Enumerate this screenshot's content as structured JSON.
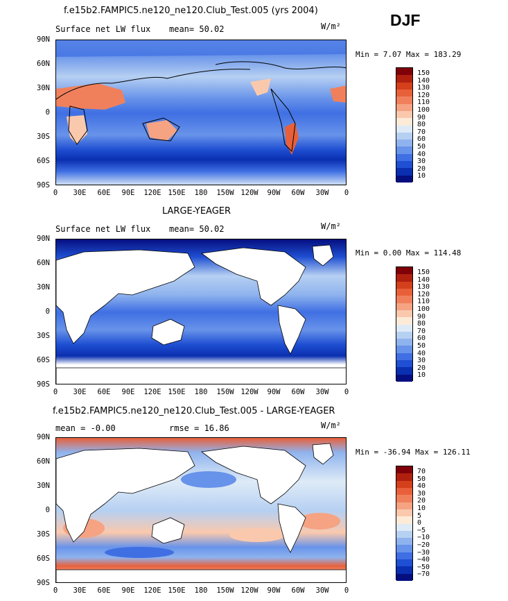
{
  "season": "DJF",
  "units": "W/m²",
  "lon_ticks": [
    "0",
    "30E",
    "60E",
    "90E",
    "120E",
    "150E",
    "180",
    "150W",
    "120W",
    "90W",
    "60W",
    "30W",
    "0"
  ],
  "lat_ticks": [
    "90N",
    "60N",
    "30N",
    "0",
    "30S",
    "60S",
    "90S"
  ],
  "panels": [
    {
      "title": "f.e15b2.FAMPIC5.ne120_ne120.Club_Test.005 (yrs 2004)",
      "left_label": "Surface net LW flux",
      "center_label": "mean=  50.02",
      "minmax": "Min =   7.07 Max = 183.29",
      "colorbar_labels": [
        "150",
        "140",
        "130",
        "120",
        "110",
        "100",
        "90",
        "80",
        "70",
        "60",
        "50",
        "40",
        "30",
        "20",
        "10"
      ]
    },
    {
      "title": "LARGE-YEAGER",
      "left_label": "Surface net LW flux",
      "center_label": "mean=  50.02",
      "minmax": "Min =   0.00 Max = 114.48",
      "colorbar_labels": [
        "150",
        "140",
        "130",
        "120",
        "110",
        "100",
        "90",
        "80",
        "70",
        "60",
        "50",
        "40",
        "30",
        "20",
        "10"
      ]
    },
    {
      "title": "f.e15b2.FAMPIC5.ne120_ne120.Club_Test.005 - LARGE-YEAGER",
      "left_label": "mean =  -0.00",
      "center_label": "rmse =  16.86",
      "minmax": "Min = -36.94 Max = 126.11",
      "colorbar_labels": [
        "70",
        "50",
        "40",
        "30",
        "20",
        "10",
        "5",
        "0",
        "−5",
        "−10",
        "−20",
        "−30",
        "−40",
        "−50",
        "−70"
      ]
    }
  ],
  "colors": {
    "scale16": [
      "#80000a",
      "#b0200e",
      "#d43f1c",
      "#e8603a",
      "#f0805c",
      "#f5a382",
      "#fac9ad",
      "#fdebd8",
      "#deebf7",
      "#b6d0f2",
      "#8fb3ee",
      "#6893ea",
      "#3f6fe3",
      "#1f4fd2",
      "#0a2fb0",
      "#050f80"
    ],
    "land": "#ffffff",
    "coast": "#000000"
  }
}
